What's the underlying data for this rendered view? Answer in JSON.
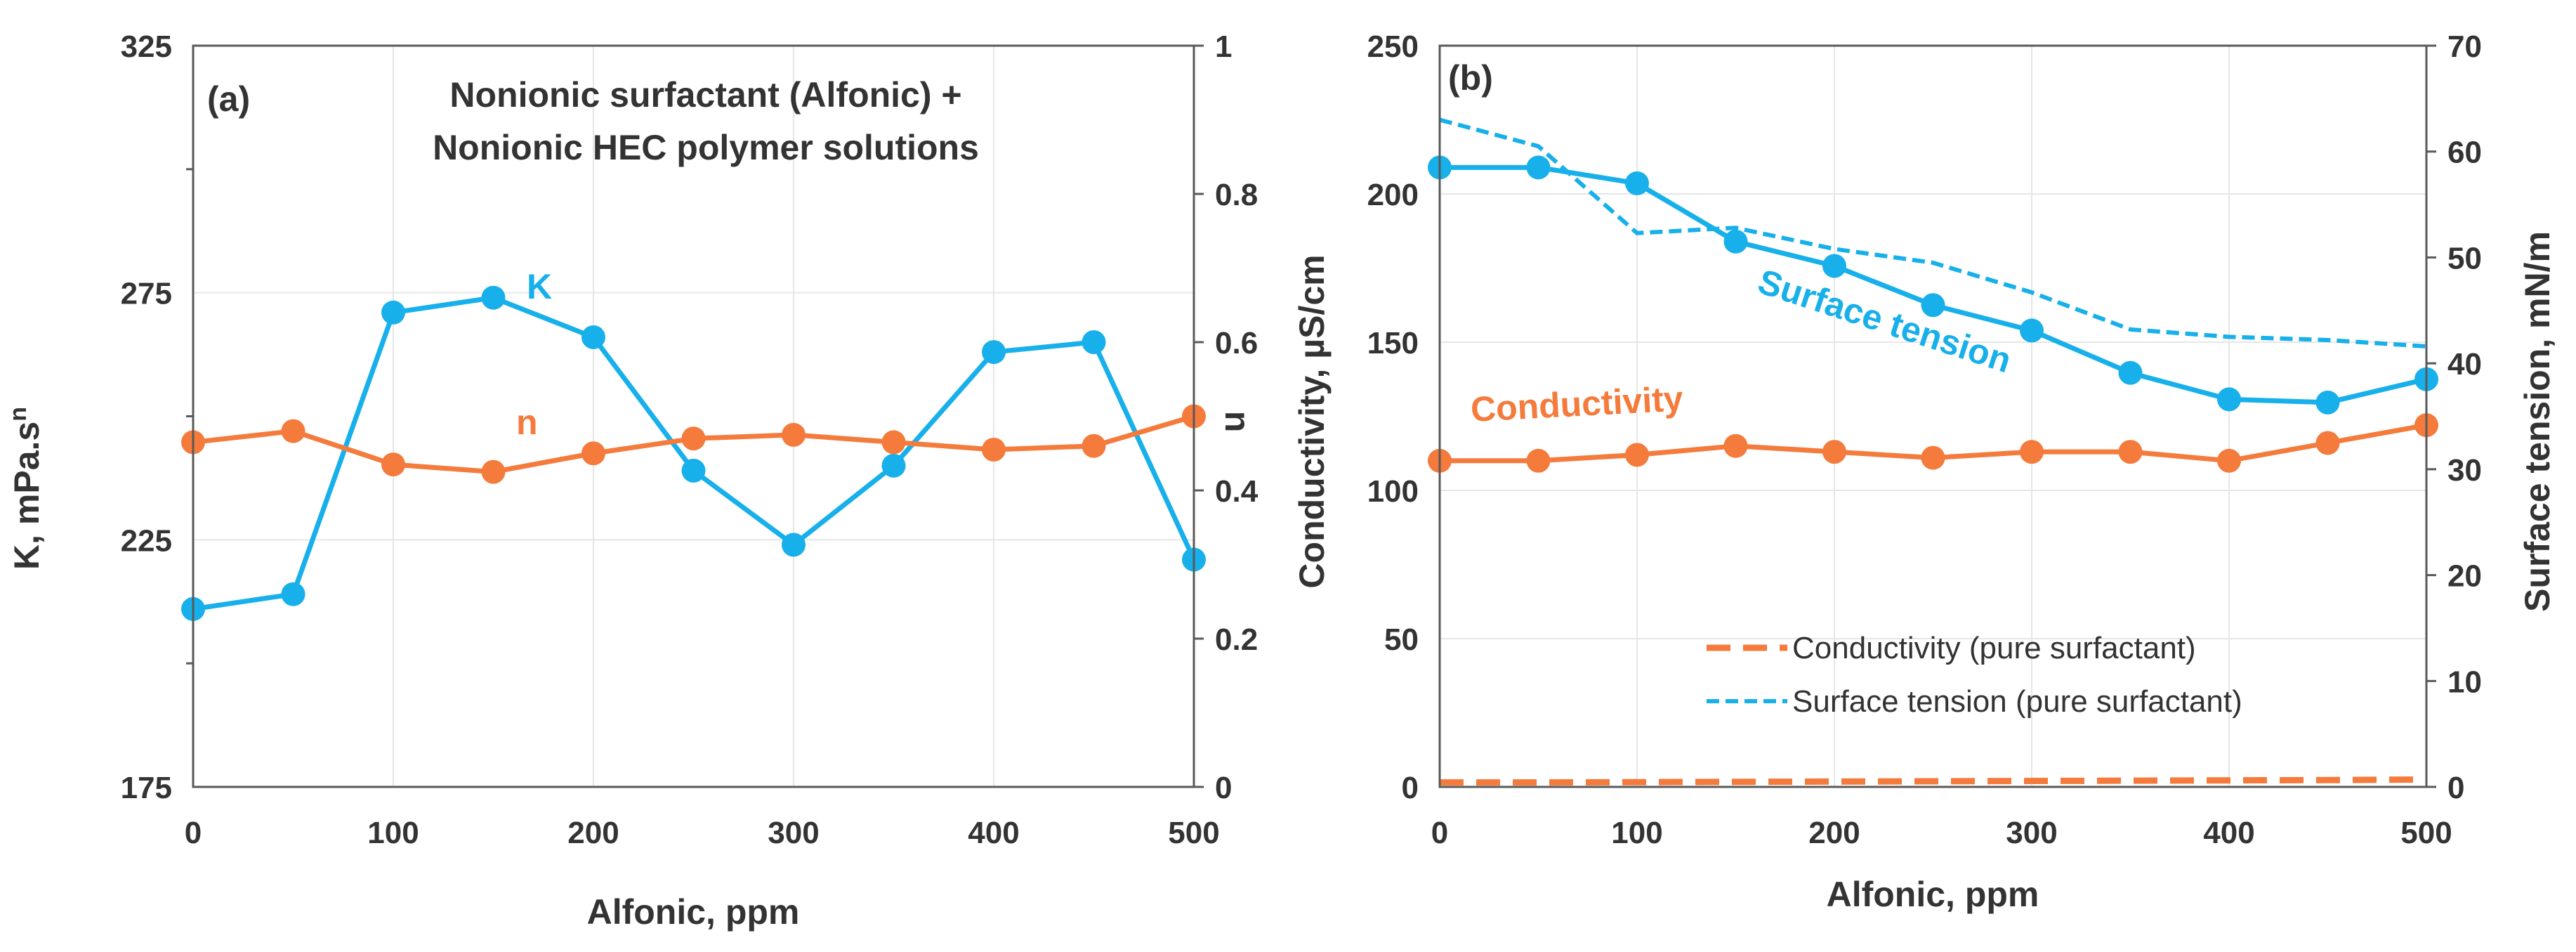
{
  "colors": {
    "blue": "#18b0ea",
    "orange": "#f47b3c",
    "grid": "#e6e6e6",
    "axis": "#595959",
    "text": "#333333"
  },
  "chart_data": [
    {
      "id": "a",
      "type": "line",
      "panel_label": "(a)",
      "title_lines": [
        "Nonionic surfactant (Alfonic) +",
        "Nonionic HEC polymer solutions"
      ],
      "xlabel": "Alfonic, ppm",
      "ylabel_left": "K, mPa.s",
      "ylabel_left_sup": "n",
      "ylabel_right": "n",
      "xlim": [
        0,
        500
      ],
      "ylim_left": [
        175,
        325
      ],
      "ylim_right": [
        0,
        1
      ],
      "x_ticks": [
        "0",
        "100",
        "200",
        "300",
        "400",
        "500"
      ],
      "y_left_ticks": [
        "175",
        "225",
        "275",
        "325"
      ],
      "y_right_ticks": [
        "0",
        "0.2",
        "0.4",
        "0.6",
        "0.8",
        "1"
      ],
      "grid": true,
      "series": [
        {
          "name": "K",
          "axis": "left",
          "color": "#18b0ea",
          "style": "solid",
          "marker": true,
          "x": [
            0,
            50,
            100,
            150,
            200,
            250,
            300,
            350,
            400,
            450,
            500
          ],
          "y": [
            211,
            214,
            271,
            274,
            266,
            239,
            224,
            240,
            263,
            265,
            221
          ]
        },
        {
          "name": "n",
          "axis": "right",
          "color": "#f47b3c",
          "style": "solid",
          "marker": true,
          "x": [
            0,
            50,
            100,
            150,
            200,
            250,
            300,
            350,
            400,
            450,
            500
          ],
          "y": [
            0.465,
            0.48,
            0.435,
            0.425,
            0.45,
            0.47,
            0.475,
            0.465,
            0.455,
            0.46,
            0.5
          ]
        }
      ],
      "annotations": [
        {
          "text": "K",
          "color": "#18b0ea"
        },
        {
          "text": "n",
          "color": "#f47b3c"
        }
      ]
    },
    {
      "id": "b",
      "type": "line",
      "panel_label": "(b)",
      "xlabel": "Alfonic, ppm",
      "ylabel_left": "Conductivity, µS/cm",
      "ylabel_right": "Surface tension, mN/m",
      "xlim": [
        0,
        500
      ],
      "ylim_left": [
        0,
        250
      ],
      "ylim_right": [
        0,
        70
      ],
      "x_ticks": [
        "0",
        "100",
        "200",
        "300",
        "400",
        "500"
      ],
      "y_left_ticks": [
        "0",
        "50",
        "100",
        "150",
        "200",
        "250"
      ],
      "y_right_ticks": [
        "0",
        "10",
        "20",
        "30",
        "40",
        "50",
        "60",
        "70"
      ],
      "grid": true,
      "series": [
        {
          "name": "Conductivity",
          "axis": "left",
          "color": "#f47b3c",
          "style": "solid",
          "marker": true,
          "x": [
            0,
            50,
            100,
            150,
            200,
            250,
            300,
            350,
            400,
            450,
            500
          ],
          "y": [
            110,
            110,
            112,
            115,
            113,
            111,
            113,
            113,
            110,
            116,
            122
          ]
        },
        {
          "name": "Surface tension",
          "axis": "right",
          "color": "#18b0ea",
          "style": "solid",
          "marker": true,
          "x": [
            0,
            50,
            100,
            150,
            200,
            250,
            300,
            350,
            400,
            450,
            500
          ],
          "y": [
            58.5,
            58.5,
            57,
            51.5,
            49.2,
            45.5,
            43.1,
            39.1,
            36.6,
            36.3,
            38.5
          ]
        },
        {
          "name": "Conductivity (pure surfactant)",
          "axis": "left",
          "color": "#f47b3c",
          "style": "dashed",
          "marker": false,
          "x": [
            0,
            50,
            100,
            150,
            200,
            250,
            300,
            350,
            400,
            450,
            500
          ],
          "y": [
            1.5,
            1.5,
            1.6,
            1.7,
            1.8,
            1.9,
            2.0,
            2.1,
            2.2,
            2.3,
            2.5
          ]
        },
        {
          "name": "Surface tension (pure surfactant)",
          "axis": "right",
          "color": "#18b0ea",
          "style": "dotted",
          "marker": false,
          "x": [
            0,
            50,
            100,
            150,
            200,
            250,
            300,
            350,
            400,
            450,
            500
          ],
          "y": [
            63,
            60.5,
            52.3,
            52.8,
            50.8,
            49.5,
            46.7,
            43.2,
            42.5,
            42.2,
            41.6
          ]
        }
      ],
      "annotations": [
        {
          "text": "Surface tension",
          "color": "#18b0ea"
        },
        {
          "text": "Conductivity",
          "color": "#f47b3c"
        }
      ],
      "legend": [
        "Conductivity (pure surfactant)",
        "Surface tension (pure surfactant)"
      ],
      "legend_position": "bottom-right"
    }
  ]
}
